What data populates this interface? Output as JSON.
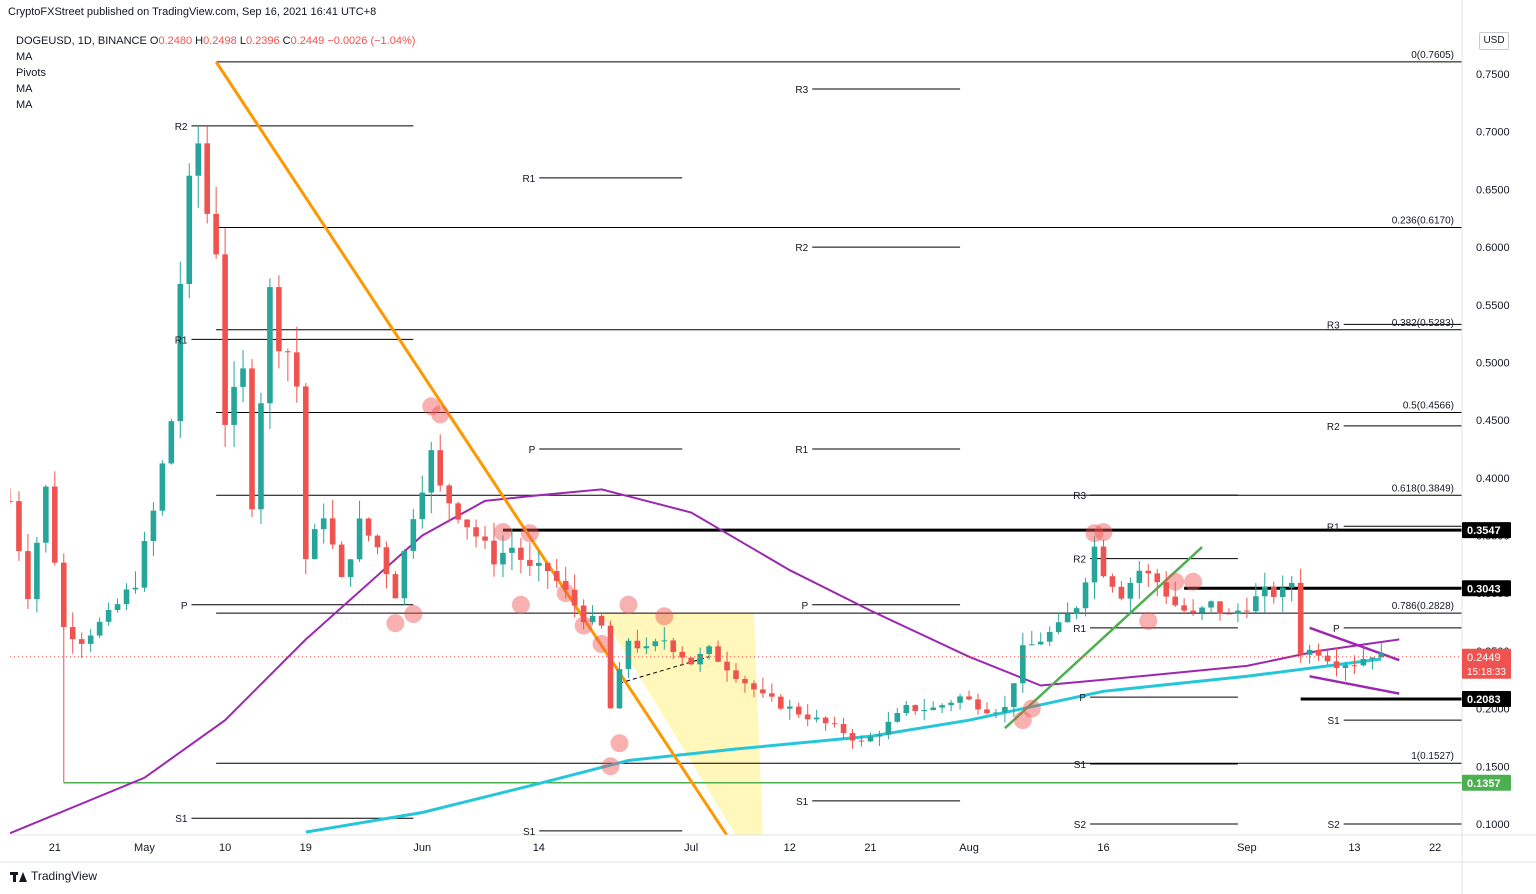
{
  "header": {
    "published": "CryptoFXStreet published on TradingView.com, Sep 16, 2021 16:41 UTC+8",
    "symbol_line": "DOGEUSD, 1D, BINANCE",
    "open_label": "O",
    "open_value": "0.2480",
    "high_label": "H",
    "high_value": "0.2498",
    "low_label": "L",
    "low_value": "0.2396",
    "close_label": "C",
    "close_value": "0.2449",
    "change": "−0.0026 (−1.04%)",
    "indicators": [
      "MA",
      "Pivots",
      "MA",
      "MA"
    ],
    "currency_button": "USD"
  },
  "footer": {
    "brand": "TradingView"
  },
  "chart_data": {
    "type": "candlestick",
    "symbol": "DOGEUSD",
    "interval": "1D",
    "exchange": "BINANCE",
    "ylim": [
      0.095,
      0.77
    ],
    "y_ticks": [
      "0.7500",
      "0.7000",
      "0.6500",
      "0.6000",
      "0.5500",
      "0.5000",
      "0.4500",
      "0.4000",
      "0.3500",
      "0.3000",
      "0.2500",
      "0.2000",
      "0.1500",
      "0.1000"
    ],
    "x_ticks": [
      {
        "label": "21",
        "date": "2021-04-21"
      },
      {
        "label": "May",
        "date": "2021-05-01"
      },
      {
        "label": "10",
        "date": "2021-05-10"
      },
      {
        "label": "19",
        "date": "2021-05-19"
      },
      {
        "label": "Jun",
        "date": "2021-06-01"
      },
      {
        "label": "14",
        "date": "2021-06-14"
      },
      {
        "label": "Jul",
        "date": "2021-07-01"
      },
      {
        "label": "12",
        "date": "2021-07-12"
      },
      {
        "label": "21",
        "date": "2021-07-21"
      },
      {
        "label": "Aug",
        "date": "2021-08-01"
      },
      {
        "label": "16",
        "date": "2021-08-16"
      },
      {
        "label": "Sep",
        "date": "2021-09-01"
      },
      {
        "label": "13",
        "date": "2021-09-13"
      },
      {
        "label": "22",
        "date": "2021-09-22"
      }
    ],
    "x_range": [
      "2021-04-16",
      "2021-09-25"
    ],
    "ohlc_anchors": [
      {
        "date": "2021-04-16",
        "close": 0.38
      },
      {
        "date": "2021-04-18",
        "close": 0.3
      },
      {
        "date": "2021-04-20",
        "close": 0.39
      },
      {
        "date": "2021-04-22",
        "close": 0.27
      },
      {
        "date": "2021-04-24",
        "close": 0.26
      },
      {
        "date": "2021-04-27",
        "close": 0.28
      },
      {
        "date": "2021-04-30",
        "close": 0.31
      },
      {
        "date": "2021-05-02",
        "close": 0.37
      },
      {
        "date": "2021-05-04",
        "close": 0.45
      },
      {
        "date": "2021-05-05",
        "close": 0.57
      },
      {
        "date": "2021-05-06",
        "close": 0.65
      },
      {
        "date": "2021-05-07",
        "close": 0.69
      },
      {
        "date": "2021-05-08",
        "close": 0.63
      },
      {
        "date": "2021-05-09",
        "close": 0.6
      },
      {
        "date": "2021-05-10",
        "close": 0.45
      },
      {
        "date": "2021-05-12",
        "close": 0.49
      },
      {
        "date": "2021-05-13",
        "close": 0.38
      },
      {
        "date": "2021-05-15",
        "close": 0.56
      },
      {
        "date": "2021-05-16",
        "close": 0.52
      },
      {
        "date": "2021-05-17",
        "close": 0.51
      },
      {
        "date": "2021-05-18",
        "close": 0.48
      },
      {
        "date": "2021-05-19",
        "close": 0.33
      },
      {
        "date": "2021-05-21",
        "close": 0.37
      },
      {
        "date": "2021-05-23",
        "close": 0.31
      },
      {
        "date": "2021-05-25",
        "close": 0.36
      },
      {
        "date": "2021-05-27",
        "close": 0.34
      },
      {
        "date": "2021-05-29",
        "close": 0.3
      },
      {
        "date": "2021-05-31",
        "close": 0.37
      },
      {
        "date": "2021-06-02",
        "close": 0.42
      },
      {
        "date": "2021-06-03",
        "close": 0.39
      },
      {
        "date": "2021-06-05",
        "close": 0.37
      },
      {
        "date": "2021-06-07",
        "close": 0.35
      },
      {
        "date": "2021-06-09",
        "close": 0.33
      },
      {
        "date": "2021-06-11",
        "close": 0.34
      },
      {
        "date": "2021-06-13",
        "close": 0.32
      },
      {
        "date": "2021-06-15",
        "close": 0.32
      },
      {
        "date": "2021-06-17",
        "close": 0.3
      },
      {
        "date": "2021-06-19",
        "close": 0.28
      },
      {
        "date": "2021-06-21",
        "close": 0.27
      },
      {
        "date": "2021-06-22",
        "close": 0.2
      },
      {
        "date": "2021-06-23",
        "close": 0.23
      },
      {
        "date": "2021-06-24",
        "close": 0.26
      },
      {
        "date": "2021-06-26",
        "close": 0.25
      },
      {
        "date": "2021-06-28",
        "close": 0.26
      },
      {
        "date": "2021-07-01",
        "close": 0.24
      },
      {
        "date": "2021-07-03",
        "close": 0.25
      },
      {
        "date": "2021-07-06",
        "close": 0.23
      },
      {
        "date": "2021-07-09",
        "close": 0.21
      },
      {
        "date": "2021-07-12",
        "close": 0.2
      },
      {
        "date": "2021-07-15",
        "close": 0.19
      },
      {
        "date": "2021-07-18",
        "close": 0.18
      },
      {
        "date": "2021-07-20",
        "close": 0.17
      },
      {
        "date": "2021-07-22",
        "close": 0.18
      },
      {
        "date": "2021-07-25",
        "close": 0.2
      },
      {
        "date": "2021-07-28",
        "close": 0.2
      },
      {
        "date": "2021-07-31",
        "close": 0.21
      },
      {
        "date": "2021-08-03",
        "close": 0.2
      },
      {
        "date": "2021-08-05",
        "close": 0.2
      },
      {
        "date": "2021-08-07",
        "close": 0.25
      },
      {
        "date": "2021-08-09",
        "close": 0.26
      },
      {
        "date": "2021-08-11",
        "close": 0.27
      },
      {
        "date": "2021-08-13",
        "close": 0.29
      },
      {
        "date": "2021-08-15",
        "close": 0.34
      },
      {
        "date": "2021-08-16",
        "close": 0.32
      },
      {
        "date": "2021-08-18",
        "close": 0.3
      },
      {
        "date": "2021-08-20",
        "close": 0.32
      },
      {
        "date": "2021-08-22",
        "close": 0.31
      },
      {
        "date": "2021-08-24",
        "close": 0.29
      },
      {
        "date": "2021-08-26",
        "close": 0.28
      },
      {
        "date": "2021-08-28",
        "close": 0.29
      },
      {
        "date": "2021-08-30",
        "close": 0.28
      },
      {
        "date": "2021-09-01",
        "close": 0.29
      },
      {
        "date": "2021-09-03",
        "close": 0.3
      },
      {
        "date": "2021-09-05",
        "close": 0.3
      },
      {
        "date": "2021-09-06",
        "close": 0.31
      },
      {
        "date": "2021-09-07",
        "close": 0.25
      },
      {
        "date": "2021-09-09",
        "close": 0.25
      },
      {
        "date": "2021-09-11",
        "close": 0.24
      },
      {
        "date": "2021-09-13",
        "close": 0.24
      },
      {
        "date": "2021-09-15",
        "close": 0.248
      },
      {
        "date": "2021-09-16",
        "close": 0.2449
      }
    ],
    "moving_averages": [
      {
        "name": "MA",
        "color": "#9c27b0",
        "points": [
          {
            "date": "2021-04-16",
            "value": 0.092
          },
          {
            "date": "2021-05-01",
            "value": 0.14
          },
          {
            "date": "2021-05-10",
            "value": 0.19
          },
          {
            "date": "2021-05-19",
            "value": 0.26
          },
          {
            "date": "2021-06-01",
            "value": 0.35
          },
          {
            "date": "2021-06-08",
            "value": 0.38
          },
          {
            "date": "2021-06-14",
            "value": 0.385
          },
          {
            "date": "2021-06-21",
            "value": 0.39
          },
          {
            "date": "2021-07-01",
            "value": 0.37
          },
          {
            "date": "2021-07-12",
            "value": 0.32
          },
          {
            "date": "2021-07-21",
            "value": 0.285
          },
          {
            "date": "2021-08-01",
            "value": 0.245
          },
          {
            "date": "2021-08-09",
            "value": 0.22
          },
          {
            "date": "2021-08-16",
            "value": 0.225
          },
          {
            "date": "2021-09-01",
            "value": 0.237
          },
          {
            "date": "2021-09-09",
            "value": 0.25
          },
          {
            "date": "2021-09-18",
            "value": 0.26
          }
        ]
      },
      {
        "name": "MA",
        "color": "#26c6da",
        "points": [
          {
            "date": "2021-05-19",
            "value": 0.093
          },
          {
            "date": "2021-06-01",
            "value": 0.11
          },
          {
            "date": "2021-06-14",
            "value": 0.135
          },
          {
            "date": "2021-06-24",
            "value": 0.155
          },
          {
            "date": "2021-07-06",
            "value": 0.165
          },
          {
            "date": "2021-07-21",
            "value": 0.176
          },
          {
            "date": "2021-08-01",
            "value": 0.19
          },
          {
            "date": "2021-08-16",
            "value": 0.215
          },
          {
            "date": "2021-09-01",
            "value": 0.228
          },
          {
            "date": "2021-09-16",
            "value": 0.243
          }
        ]
      }
    ],
    "fib_levels": [
      {
        "label": "0(0.7605)",
        "value": 0.7605
      },
      {
        "label": "0.236(0.6170)",
        "value": 0.617
      },
      {
        "label": "0.382(0.5283)",
        "value": 0.5283
      },
      {
        "label": "0.5(0.4566)",
        "value": 0.4566
      },
      {
        "label": "0.618(0.3849)",
        "value": 0.3849
      },
      {
        "label": "0.786(0.2828)",
        "value": 0.2828
      },
      {
        "label": "1(0.1527)",
        "value": 0.1527
      }
    ],
    "pivot_sets": [
      {
        "start": "2021-04-16",
        "end": "2021-05-31",
        "levels": [
          {
            "label": "R2",
            "value": 0.705
          },
          {
            "label": "R1",
            "value": 0.52
          },
          {
            "label": "P",
            "value": 0.29
          },
          {
            "label": "S1",
            "value": 0.105
          }
        ]
      },
      {
        "start": "2021-06-01",
        "end": "2021-06-30",
        "levels": [
          {
            "label": "R1",
            "value": 0.66
          },
          {
            "label": "P",
            "value": 0.425
          },
          {
            "label": "S1",
            "value": 0.094
          }
        ]
      },
      {
        "start": "2021-07-01",
        "end": "2021-07-31",
        "levels": [
          {
            "label": "R3",
            "value": 0.737
          },
          {
            "label": "R2",
            "value": 0.6
          },
          {
            "label": "R1",
            "value": 0.425
          },
          {
            "label": "P",
            "value": 0.29
          },
          {
            "label": "S1",
            "value": 0.12
          }
        ]
      },
      {
        "start": "2021-08-01",
        "end": "2021-08-31",
        "levels": [
          {
            "label": "R3",
            "value": 0.385
          },
          {
            "label": "R2",
            "value": 0.33
          },
          {
            "label": "R1",
            "value": 0.27
          },
          {
            "label": "P",
            "value": 0.21
          },
          {
            "label": "S1",
            "value": 0.152
          },
          {
            "label": "S2",
            "value": 0.1
          }
        ]
      },
      {
        "start": "2021-09-01",
        "end": "2021-09-25",
        "levels": [
          {
            "label": "R3",
            "value": 0.533
          },
          {
            "label": "R2",
            "value": 0.445
          },
          {
            "label": "R1",
            "value": 0.358
          },
          {
            "label": "P",
            "value": 0.27
          },
          {
            "label": "S1",
            "value": 0.19
          },
          {
            "label": "S2",
            "value": 0.1
          }
        ]
      }
    ],
    "horizontal_levels": [
      {
        "label": "0.3547",
        "value": 0.3547,
        "color": "#000000",
        "start": "2021-06-10"
      },
      {
        "label": "0.3043",
        "value": 0.3043,
        "color": "#000000",
        "start": "2021-08-25"
      },
      {
        "label": "0.2083",
        "value": 0.2083,
        "color": "#000000",
        "start": "2021-09-07"
      },
      {
        "label": "0.1357",
        "value": 0.1357,
        "color": "#4caf50",
        "start": "2021-04-22"
      }
    ],
    "price_labels": {
      "last_price": "0.2449",
      "countdown": "15:18:33",
      "last_price_color": "#ef5350"
    }
  }
}
